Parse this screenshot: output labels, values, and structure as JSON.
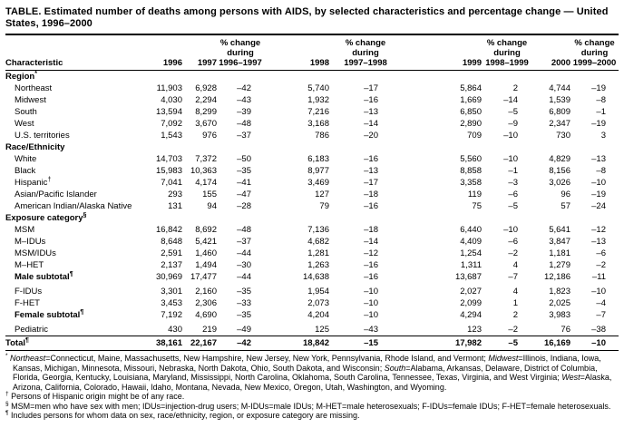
{
  "title": "TABLE. Estimated number of deaths among persons with AIDS, by selected characteristics and percentage change — United States, 1996–2000",
  "columns": {
    "characteristic": "Characteristic",
    "years": [
      "1996",
      "1997",
      "1998",
      "1999",
      "2000"
    ],
    "pct_line1": "% change",
    "pct_line2": "during",
    "pct_ranges": [
      "1996–1997",
      "1997–1998",
      "1998–1999",
      "1999–2000"
    ]
  },
  "table": {
    "rows": [
      {
        "type": "section",
        "label": "Region",
        "sup": "*"
      },
      {
        "type": "data",
        "label": "Northeast",
        "values": [
          "11,903",
          "6,928",
          "–42",
          "5,740",
          "–17",
          "5,864",
          "2",
          "4,744",
          "–19"
        ]
      },
      {
        "type": "data",
        "label": "Midwest",
        "values": [
          "4,030",
          "2,294",
          "–43",
          "1,932",
          "–16",
          "1,669",
          "–14",
          "1,539",
          "–8"
        ]
      },
      {
        "type": "data",
        "label": "South",
        "values": [
          "13,594",
          "8,299",
          "–39",
          "7,216",
          "–13",
          "6,850",
          "–5",
          "6,809",
          "–1"
        ]
      },
      {
        "type": "data",
        "label": "West",
        "values": [
          "7,092",
          "3,670",
          "–48",
          "3,168",
          "–14",
          "2,890",
          "–9",
          "2,347",
          "–19"
        ]
      },
      {
        "type": "data",
        "label": "U.S. territories",
        "values": [
          "1,543",
          "976",
          "–37",
          "786",
          "–20",
          "709",
          "–10",
          "730",
          "3"
        ]
      },
      {
        "type": "section",
        "label": "Race/Ethnicity"
      },
      {
        "type": "data",
        "label": "White",
        "values": [
          "14,703",
          "7,372",
          "–50",
          "6,183",
          "–16",
          "5,560",
          "–10",
          "4,829",
          "–13"
        ]
      },
      {
        "type": "data",
        "label": "Black",
        "values": [
          "15,983",
          "10,363",
          "–35",
          "8,977",
          "–13",
          "8,858",
          "–1",
          "8,156",
          "–8"
        ]
      },
      {
        "type": "data",
        "label": "Hispanic",
        "sup": "†",
        "values": [
          "7,041",
          "4,174",
          "–41",
          "3,469",
          "–17",
          "3,358",
          "–3",
          "3,026",
          "–10"
        ]
      },
      {
        "type": "data",
        "label": "Asian/Pacific Islander",
        "values": [
          "293",
          "155",
          "–47",
          "127",
          "–18",
          "119",
          "–6",
          "96",
          "–19"
        ]
      },
      {
        "type": "data",
        "label": "American Indian/Alaska Native",
        "values": [
          "131",
          "94",
          "–28",
          "79",
          "–16",
          "75",
          "–5",
          "57",
          "–24"
        ]
      },
      {
        "type": "section",
        "label": "Exposure category",
        "sup": "§"
      },
      {
        "type": "data",
        "label": "MSM",
        "values": [
          "16,842",
          "8,692",
          "–48",
          "7,136",
          "–18",
          "6,440",
          "–10",
          "5,641",
          "–12"
        ]
      },
      {
        "type": "data",
        "label": "M–IDUs",
        "values": [
          "8,648",
          "5,421",
          "–37",
          "4,682",
          "–14",
          "4,409",
          "–6",
          "3,847",
          "–13"
        ]
      },
      {
        "type": "data",
        "label": "MSM/IDUs",
        "values": [
          "2,591",
          "1,460",
          "–44",
          "1,281",
          "–12",
          "1,254",
          "–2",
          "1,181",
          "–6"
        ]
      },
      {
        "type": "data",
        "label": "M–HET",
        "values": [
          "2,137",
          "1,494",
          "–30",
          "1,263",
          "–16",
          "1,311",
          "4",
          "1,279",
          "–2"
        ]
      },
      {
        "type": "data",
        "label": "Male subtotal",
        "sup": "¶",
        "bold": true,
        "values": [
          "30,969",
          "17,477",
          "–44",
          "14,638",
          "–16",
          "13,687",
          "–7",
          "12,186",
          "–11"
        ]
      },
      {
        "type": "data",
        "label": "F-IDUs",
        "gap": true,
        "values": [
          "3,301",
          "2,160",
          "–35",
          "1,954",
          "–10",
          "2,027",
          "4",
          "1,823",
          "–10"
        ]
      },
      {
        "type": "data",
        "label": "F-HET",
        "values": [
          "3,453",
          "2,306",
          "–33",
          "2,073",
          "–10",
          "2,099",
          "1",
          "2,025",
          "–4"
        ]
      },
      {
        "type": "data",
        "label": "Female subtotal",
        "sup": "¶",
        "bold": true,
        "values": [
          "7,192",
          "4,690",
          "–35",
          "4,204",
          "–10",
          "4,294",
          "2",
          "3,983",
          "–7"
        ]
      },
      {
        "type": "data",
        "label": "Pediatric",
        "gap": true,
        "values": [
          "430",
          "219",
          "–49",
          "125",
          "–43",
          "123",
          "–2",
          "76",
          "–38"
        ]
      }
    ],
    "total": {
      "label": "Total",
      "sup": "¶",
      "values": [
        "38,161",
        "22,167",
        "–42",
        "18,842",
        "–15",
        "17,982",
        "–5",
        "16,169",
        "–10"
      ]
    }
  },
  "footnotes": [
    {
      "marker": "*",
      "segments": [
        {
          "text": "Northeast",
          "italic": true
        },
        {
          "text": "=Connecticut, Maine, Massachusetts, New Hampshire, New Jersey, New York, Pennsylvania, Rhode Island, and Vermont; "
        },
        {
          "text": "Midwest",
          "italic": true
        },
        {
          "text": "=Illinois, Indiana, Iowa, Kansas, Michigan, Minnesota, Missouri, Nebraska, North Dakota, Ohio, South Dakota, and Wisconsin; "
        },
        {
          "text": "South",
          "italic": true
        },
        {
          "text": "=Alabama, Arkansas, Delaware, District of Columbia, Florida, Georgia, Kentucky, Louisiana, Maryland, Mississippi, North Carolina, Oklahoma, South Carolina, Tennessee, Texas, Virginia, and West Virginia; "
        },
        {
          "text": "West",
          "italic": true
        },
        {
          "text": "=Alaska, Arizona, California, Colorado, Hawaii, Idaho, Montana, Nevada, New Mexico, Oregon, Utah, Washington, and Wyoming."
        }
      ]
    },
    {
      "marker": "†",
      "segments": [
        {
          "text": "Persons of Hispanic origin might be of any race."
        }
      ]
    },
    {
      "marker": "§",
      "segments": [
        {
          "text": "MSM=men who have sex with men; IDUs=injection-drug users; M-IDUs=male IDUs; M-HET=male heterosexuals; F-IDUs=female IDUs; F-HET=female heterosexuals."
        }
      ]
    },
    {
      "marker": "¶",
      "segments": [
        {
          "text": "Includes persons for whom data on sex, race/ethnicity, region, or exposure category are missing."
        }
      ]
    }
  ]
}
